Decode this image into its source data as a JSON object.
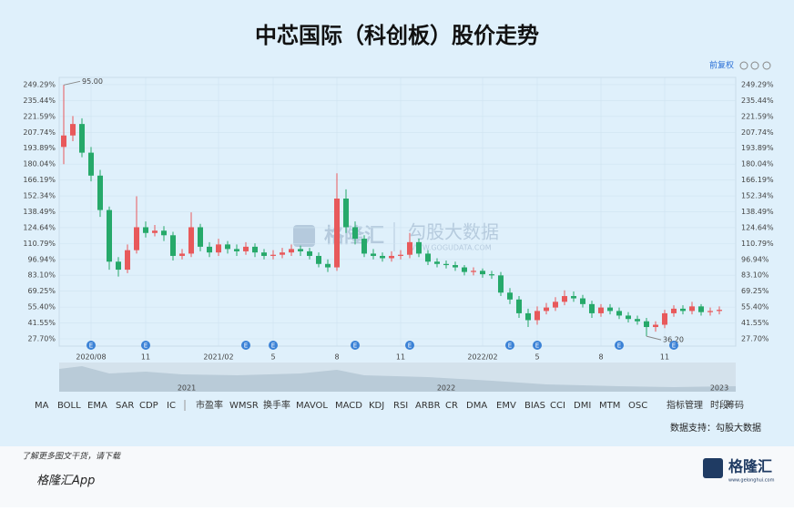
{
  "header": {
    "title": "中芯国际（科创板）股价走势"
  },
  "toolbar": {
    "adjust": "前复权"
  },
  "chart_data": {
    "type": "candlestick",
    "categories": [
      null,
      null,
      null,
      "2020/08",
      null,
      null,
      null,
      null,
      null,
      "11",
      null,
      null,
      null,
      null,
      null,
      null,
      null,
      "2021/02",
      null,
      null,
      null,
      null,
      null,
      "5",
      null,
      null,
      null,
      null,
      null,
      null,
      "8",
      null,
      null,
      null,
      null,
      null,
      null,
      "11",
      null,
      null,
      null,
      null,
      null,
      null,
      null,
      null,
      "2022/02",
      null,
      null,
      null,
      null,
      null,
      "5",
      null,
      null,
      null,
      null,
      null,
      null,
      "8",
      null,
      null,
      null,
      null,
      null,
      null,
      "11",
      null,
      null,
      null,
      null,
      null,
      null
    ],
    "open": [
      195,
      205,
      215,
      190,
      170,
      140,
      95,
      88,
      105,
      125,
      120,
      122,
      118,
      100,
      102,
      125,
      108,
      103,
      110,
      106,
      104,
      108,
      103,
      100,
      101,
      103,
      106,
      104,
      100,
      93,
      90,
      150,
      125,
      115,
      102,
      100,
      98,
      100,
      101,
      112,
      102,
      95,
      93,
      92,
      90,
      86,
      87,
      84,
      83,
      68,
      62,
      50,
      44,
      52,
      55,
      60,
      65,
      63,
      58,
      50,
      55,
      52,
      48,
      45,
      43,
      38,
      40,
      50,
      54,
      52,
      56,
      51,
      52
    ],
    "high": [
      249,
      222,
      220,
      195,
      175,
      143,
      99,
      110,
      152,
      130,
      127,
      126,
      121,
      106,
      138,
      128,
      112,
      115,
      113,
      110,
      112,
      111,
      106,
      105,
      107,
      110,
      109,
      107,
      103,
      97,
      172,
      158,
      130,
      118,
      106,
      103,
      104,
      105,
      120,
      115,
      105,
      98,
      96,
      95,
      92,
      90,
      89,
      87,
      86,
      72,
      65,
      54,
      56,
      59,
      64,
      70,
      69,
      66,
      61,
      58,
      58,
      55,
      51,
      48,
      46,
      43,
      53,
      57,
      57,
      60,
      58,
      55,
      56
    ],
    "low": [
      180,
      200,
      186,
      165,
      134,
      88,
      82,
      85,
      102,
      116,
      117,
      113,
      96,
      97,
      99,
      104,
      99,
      100,
      102,
      100,
      101,
      99,
      97,
      97,
      98,
      100,
      100,
      97,
      90,
      86,
      87,
      120,
      110,
      99,
      97,
      95,
      95,
      97,
      98,
      99,
      92,
      90,
      89,
      87,
      83,
      83,
      81,
      80,
      65,
      58,
      46,
      38,
      40,
      49,
      52,
      57,
      60,
      55,
      46,
      47,
      49,
      45,
      42,
      40,
      30,
      34,
      37,
      47,
      49,
      49,
      48,
      48,
      49
    ],
    "close": [
      205,
      215,
      190,
      170,
      140,
      95,
      88,
      105,
      125,
      120,
      122,
      118,
      100,
      102,
      125,
      108,
      103,
      110,
      106,
      104,
      108,
      103,
      100,
      101,
      103,
      106,
      104,
      100,
      93,
      90,
      150,
      125,
      115,
      102,
      100,
      98,
      100,
      101,
      112,
      102,
      95,
      93,
      92,
      90,
      86,
      87,
      84,
      83,
      68,
      62,
      50,
      44,
      52,
      55,
      60,
      65,
      63,
      58,
      50,
      55,
      52,
      48,
      45,
      43,
      38,
      40,
      50,
      54,
      52,
      56,
      51,
      52,
      53
    ],
    "up_color": "#e8595b",
    "down_color": "#26a96a",
    "ylim": [
      21.35,
      255.6
    ],
    "yticks": [
      {
        "value": 27.7,
        "label": "27.70%"
      },
      {
        "value": 41.55,
        "label": "41.55%"
      },
      {
        "value": 55.4,
        "label": "55.40%"
      },
      {
        "value": 69.25,
        "label": "69.25%"
      },
      {
        "value": 83.1,
        "label": "83.10%"
      },
      {
        "value": 96.94,
        "label": "96.94%"
      },
      {
        "value": 110.79,
        "label": "110.79%"
      },
      {
        "value": 124.64,
        "label": "124.64%"
      },
      {
        "value": 138.49,
        "label": "138.49%"
      },
      {
        "value": 152.34,
        "label": "152.34%"
      },
      {
        "value": 166.19,
        "label": "166.19%"
      },
      {
        "value": 180.04,
        "label": "180.04%"
      },
      {
        "value": 193.89,
        "label": "193.89%"
      },
      {
        "value": 207.74,
        "label": "207.74%"
      },
      {
        "value": 221.59,
        "label": "221.59%"
      },
      {
        "value": 235.44,
        "label": "235.44%"
      },
      {
        "value": 249.29,
        "label": "249.29%"
      }
    ],
    "grid": true,
    "max_label": "95.00",
    "min_label": "36.20",
    "events": [
      {
        "category_index": 3,
        "label": "E"
      },
      {
        "category_index": 9,
        "label": "E"
      },
      {
        "category_index": 20,
        "label": "E"
      },
      {
        "category_index": 23,
        "label": "E"
      },
      {
        "category_index": 32,
        "label": "E"
      },
      {
        "category_index": 38,
        "label": "E"
      },
      {
        "category_index": 49,
        "label": "E"
      },
      {
        "category_index": 52,
        "label": "E"
      },
      {
        "category_index": 61,
        "label": "E"
      },
      {
        "category_index": 67,
        "label": "E"
      }
    ]
  },
  "navigator": {
    "labels": [
      "2021",
      "2022",
      "2023"
    ]
  },
  "indicator_tabs": [
    "MA",
    "BOLL",
    "EMA",
    "SAR",
    "CDP",
    "IC",
    "市盈率",
    "WMSR",
    "换手率",
    "MAVOL",
    "MACD",
    "KDJ",
    "RSI",
    "ARBR",
    "CR",
    "DMA",
    "EMV",
    "BIAS",
    "CCI",
    "DMI",
    "MTM",
    "OSC"
  ],
  "extra_tabs": [
    "指标管理",
    "时段",
    "筹码"
  ],
  "watermark": {
    "brand": "格隆汇",
    "source": "勾股大数据",
    "url": "WWW.GOGUDATA.COM"
  },
  "source": "数据支持：勾股大数据",
  "footer": {
    "prompt": "了解更多图文干货，请下载",
    "app": "格隆汇App",
    "logo": "格隆汇",
    "logo_url": "www.gelonghui.com"
  }
}
